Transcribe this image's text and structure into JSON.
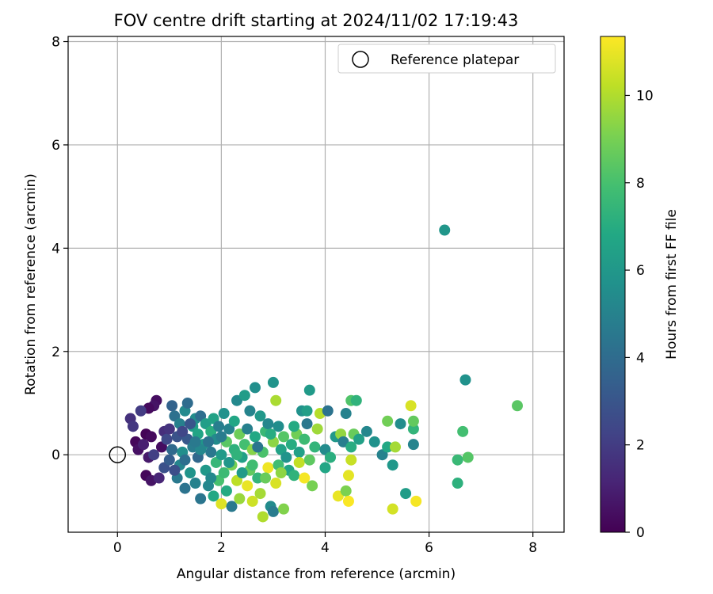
{
  "chart_data": {
    "type": "scatter",
    "title": "FOV centre drift starting at 2024/11/02 17:19:43",
    "xlabel": "Angular distance from reference (arcmin)",
    "ylabel": "Rotation from reference (arcmin)",
    "xlim": [
      -0.95,
      8.6
    ],
    "ylim": [
      -1.5,
      8.1
    ],
    "xticks": [
      0,
      2,
      4,
      6,
      8
    ],
    "yticks": [
      0,
      2,
      4,
      6,
      8
    ],
    "grid": true,
    "legend": {
      "placement": "top-right",
      "entries": [
        "Reference platepar"
      ]
    },
    "reference_point": {
      "x": 0,
      "y": 0,
      "label": "Reference platepar"
    },
    "colorbar": {
      "label": "Hours from first FF file",
      "range": [
        0,
        11.35
      ],
      "ticks": [
        0,
        2,
        4,
        6,
        8,
        10
      ],
      "colormap": "viridis"
    },
    "points": [
      {
        "x": 6.3,
        "y": 4.35,
        "c": 5.9
      },
      {
        "x": 0.75,
        "y": 1.05,
        "c": 0.4
      },
      {
        "x": 0.7,
        "y": 0.95,
        "c": 0.6
      },
      {
        "x": 0.6,
        "y": 0.9,
        "c": 0.3
      },
      {
        "x": 0.25,
        "y": 0.7,
        "c": 1.6
      },
      {
        "x": 0.45,
        "y": 0.85,
        "c": 2.0
      },
      {
        "x": 0.3,
        "y": 0.55,
        "c": 1.8
      },
      {
        "x": 0.35,
        "y": 0.25,
        "c": 0.2
      },
      {
        "x": 0.4,
        "y": 0.1,
        "c": 0.5
      },
      {
        "x": 0.5,
        "y": 0.2,
        "c": 1.0
      },
      {
        "x": 0.55,
        "y": 0.4,
        "c": 0.1
      },
      {
        "x": 0.65,
        "y": 0.35,
        "c": 0.3
      },
      {
        "x": 0.6,
        "y": -0.05,
        "c": 0.8
      },
      {
        "x": 0.55,
        "y": -0.4,
        "c": 0.2
      },
      {
        "x": 0.65,
        "y": -0.5,
        "c": 0.6
      },
      {
        "x": 0.8,
        "y": -0.45,
        "c": 1.2
      },
      {
        "x": 0.7,
        "y": 0.0,
        "c": 2.1
      },
      {
        "x": 0.85,
        "y": 0.15,
        "c": 0.4
      },
      {
        "x": 0.9,
        "y": 0.45,
        "c": 1.5
      },
      {
        "x": 0.95,
        "y": 0.3,
        "c": 2.5
      },
      {
        "x": 1.0,
        "y": 0.5,
        "c": 1.7
      },
      {
        "x": 0.9,
        "y": -0.25,
        "c": 2.8
      },
      {
        "x": 1.0,
        "y": -0.1,
        "c": 3.3
      },
      {
        "x": 1.05,
        "y": 0.1,
        "c": 3.9
      },
      {
        "x": 1.05,
        "y": 0.95,
        "c": 3.6
      },
      {
        "x": 1.1,
        "y": 0.75,
        "c": 4.2
      },
      {
        "x": 1.15,
        "y": 0.35,
        "c": 2.9
      },
      {
        "x": 1.15,
        "y": -0.45,
        "c": 4.6
      },
      {
        "x": 1.2,
        "y": -0.2,
        "c": 5.1
      },
      {
        "x": 1.2,
        "y": 0.6,
        "c": 4.9
      },
      {
        "x": 1.25,
        "y": 0.05,
        "c": 5.6
      },
      {
        "x": 1.3,
        "y": -0.65,
        "c": 4.3
      },
      {
        "x": 1.3,
        "y": 0.85,
        "c": 5.3
      },
      {
        "x": 1.35,
        "y": 0.3,
        "c": 3.1
      },
      {
        "x": 1.35,
        "y": 1.0,
        "c": 4.0
      },
      {
        "x": 1.4,
        "y": -0.35,
        "c": 5.8
      },
      {
        "x": 1.45,
        "y": 0.55,
        "c": 6.2
      },
      {
        "x": 1.45,
        "y": 0.15,
        "c": 4.7
      },
      {
        "x": 1.5,
        "y": -0.55,
        "c": 5.0
      },
      {
        "x": 1.5,
        "y": 0.7,
        "c": 5.5
      },
      {
        "x": 1.55,
        "y": -0.05,
        "c": 3.8
      },
      {
        "x": 1.55,
        "y": 0.4,
        "c": 6.6
      },
      {
        "x": 1.6,
        "y": -0.85,
        "c": 4.4
      },
      {
        "x": 1.6,
        "y": 0.75,
        "c": 4.1
      },
      {
        "x": 1.65,
        "y": 0.2,
        "c": 5.9
      },
      {
        "x": 1.7,
        "y": -0.3,
        "c": 6.0
      },
      {
        "x": 1.7,
        "y": 0.6,
        "c": 6.3
      },
      {
        "x": 1.75,
        "y": -0.6,
        "c": 5.2
      },
      {
        "x": 1.8,
        "y": 0.05,
        "c": 4.5
      },
      {
        "x": 1.8,
        "y": 0.45,
        "c": 7.1
      },
      {
        "x": 1.85,
        "y": -0.8,
        "c": 6.8
      },
      {
        "x": 1.85,
        "y": 0.7,
        "c": 6.5
      },
      {
        "x": 1.9,
        "y": -0.15,
        "c": 7.5
      },
      {
        "x": 1.9,
        "y": 0.3,
        "c": 5.4
      },
      {
        "x": 1.95,
        "y": -0.5,
        "c": 8.0
      },
      {
        "x": 1.95,
        "y": 0.55,
        "c": 4.8
      },
      {
        "x": 2.0,
        "y": 0.0,
        "c": 6.1
      },
      {
        "x": 2.0,
        "y": -0.95,
        "c": 10.8
      },
      {
        "x": 2.05,
        "y": 0.8,
        "c": 5.7
      },
      {
        "x": 2.05,
        "y": -0.35,
        "c": 7.7
      },
      {
        "x": 2.1,
        "y": 0.25,
        "c": 8.4
      },
      {
        "x": 2.1,
        "y": -0.7,
        "c": 6.9
      },
      {
        "x": 2.15,
        "y": 0.5,
        "c": 5.0
      },
      {
        "x": 2.2,
        "y": -0.2,
        "c": 9.0
      },
      {
        "x": 2.2,
        "y": -1.0,
        "c": 4.6
      },
      {
        "x": 2.25,
        "y": 0.1,
        "c": 7.2
      },
      {
        "x": 2.25,
        "y": 0.65,
        "c": 6.7
      },
      {
        "x": 2.3,
        "y": -0.5,
        "c": 10.2
      },
      {
        "x": 2.3,
        "y": 1.05,
        "c": 5.3
      },
      {
        "x": 2.35,
        "y": 0.4,
        "c": 8.8
      },
      {
        "x": 2.35,
        "y": -0.85,
        "c": 9.6
      },
      {
        "x": 2.4,
        "y": -0.05,
        "c": 6.4
      },
      {
        "x": 2.45,
        "y": 0.2,
        "c": 7.9
      },
      {
        "x": 2.45,
        "y": 1.15,
        "c": 6.2
      },
      {
        "x": 2.5,
        "y": -0.6,
        "c": 11.0
      },
      {
        "x": 2.5,
        "y": 0.5,
        "c": 4.9
      },
      {
        "x": 2.55,
        "y": -0.3,
        "c": 8.6
      },
      {
        "x": 2.55,
        "y": 0.85,
        "c": 5.1
      },
      {
        "x": 2.6,
        "y": 0.1,
        "c": 9.3
      },
      {
        "x": 2.6,
        "y": -0.9,
        "c": 10.5
      },
      {
        "x": 2.65,
        "y": 0.35,
        "c": 6.8
      },
      {
        "x": 2.65,
        "y": 1.3,
        "c": 5.6
      },
      {
        "x": 2.7,
        "y": -0.45,
        "c": 7.4
      },
      {
        "x": 2.75,
        "y": 0.75,
        "c": 6.0
      },
      {
        "x": 2.75,
        "y": -0.75,
        "c": 9.8
      },
      {
        "x": 2.8,
        "y": 0.05,
        "c": 8.1
      },
      {
        "x": 2.8,
        "y": -1.2,
        "c": 10.0
      },
      {
        "x": 2.85,
        "y": 0.45,
        "c": 7.6
      },
      {
        "x": 2.9,
        "y": -0.25,
        "c": 11.1
      },
      {
        "x": 2.9,
        "y": 0.6,
        "c": 5.2
      },
      {
        "x": 2.95,
        "y": -1.0,
        "c": 5.4
      },
      {
        "x": 3.0,
        "y": 0.25,
        "c": 9.4
      },
      {
        "x": 3.0,
        "y": -1.1,
        "c": 4.7
      },
      {
        "x": 3.0,
        "y": 1.4,
        "c": 5.8
      },
      {
        "x": 3.05,
        "y": -0.55,
        "c": 10.7
      },
      {
        "x": 3.05,
        "y": 1.05,
        "c": 9.9
      },
      {
        "x": 3.1,
        "y": 0.55,
        "c": 5.5
      },
      {
        "x": 3.1,
        "y": -0.2,
        "c": 7.8
      },
      {
        "x": 3.15,
        "y": 0.1,
        "c": 6.5
      },
      {
        "x": 3.2,
        "y": -1.05,
        "c": 9.2
      },
      {
        "x": 3.2,
        "y": 0.35,
        "c": 8.3
      },
      {
        "x": 3.3,
        "y": -0.3,
        "c": 6.6
      },
      {
        "x": 3.35,
        "y": 0.2,
        "c": 7.0
      },
      {
        "x": 3.4,
        "y": -0.4,
        "c": 7.3
      },
      {
        "x": 3.45,
        "y": 0.4,
        "c": 8.9
      },
      {
        "x": 3.5,
        "y": 0.05,
        "c": 6.4
      },
      {
        "x": 3.5,
        "y": -0.15,
        "c": 10.3
      },
      {
        "x": 3.55,
        "y": 0.85,
        "c": 5.7
      },
      {
        "x": 3.6,
        "y": -0.45,
        "c": 11.2
      },
      {
        "x": 3.6,
        "y": 0.3,
        "c": 7.7
      },
      {
        "x": 3.65,
        "y": 0.6,
        "c": 4.5
      },
      {
        "x": 3.65,
        "y": 0.85,
        "c": 6.3
      },
      {
        "x": 3.7,
        "y": 1.25,
        "c": 6.1
      },
      {
        "x": 3.7,
        "y": -0.1,
        "c": 8.5
      },
      {
        "x": 3.75,
        "y": -0.6,
        "c": 9.0
      },
      {
        "x": 3.8,
        "y": 0.15,
        "c": 7.4
      },
      {
        "x": 3.85,
        "y": 0.5,
        "c": 9.7
      },
      {
        "x": 3.9,
        "y": 0.8,
        "c": 10.1
      },
      {
        "x": 4.0,
        "y": 0.1,
        "c": 5.4
      },
      {
        "x": 4.0,
        "y": -0.25,
        "c": 6.7
      },
      {
        "x": 4.05,
        "y": 0.85,
        "c": 4.3
      },
      {
        "x": 4.1,
        "y": -0.05,
        "c": 7.1
      },
      {
        "x": 4.2,
        "y": 0.35,
        "c": 6.0
      },
      {
        "x": 4.25,
        "y": -0.8,
        "c": 11.0
      },
      {
        "x": 4.3,
        "y": 0.4,
        "c": 9.5
      },
      {
        "x": 4.35,
        "y": 0.25,
        "c": 4.8
      },
      {
        "x": 4.4,
        "y": 0.8,
        "c": 5.0
      },
      {
        "x": 4.4,
        "y": -0.7,
        "c": 9.1
      },
      {
        "x": 4.45,
        "y": -0.4,
        "c": 10.9
      },
      {
        "x": 4.45,
        "y": -0.9,
        "c": 11.3
      },
      {
        "x": 4.5,
        "y": 1.05,
        "c": 8.2
      },
      {
        "x": 4.5,
        "y": 0.15,
        "c": 7.0
      },
      {
        "x": 4.5,
        "y": -0.1,
        "c": 10.4
      },
      {
        "x": 4.55,
        "y": 0.4,
        "c": 8.7
      },
      {
        "x": 4.6,
        "y": 1.05,
        "c": 7.3
      },
      {
        "x": 4.65,
        "y": 0.3,
        "c": 6.4
      },
      {
        "x": 4.8,
        "y": 0.45,
        "c": 5.2
      },
      {
        "x": 4.95,
        "y": 0.25,
        "c": 5.7
      },
      {
        "x": 5.1,
        "y": 0.0,
        "c": 5.0
      },
      {
        "x": 5.2,
        "y": 0.65,
        "c": 8.9
      },
      {
        "x": 5.2,
        "y": 0.15,
        "c": 6.8
      },
      {
        "x": 5.3,
        "y": -1.05,
        "c": 10.6
      },
      {
        "x": 5.3,
        "y": -0.2,
        "c": 6.0
      },
      {
        "x": 5.35,
        "y": 0.15,
        "c": 9.8
      },
      {
        "x": 5.45,
        "y": 0.6,
        "c": 5.5
      },
      {
        "x": 5.55,
        "y": -0.75,
        "c": 6.2
      },
      {
        "x": 5.65,
        "y": 0.95,
        "c": 10.7
      },
      {
        "x": 5.7,
        "y": 0.2,
        "c": 5.1
      },
      {
        "x": 5.7,
        "y": 0.5,
        "c": 7.4
      },
      {
        "x": 5.7,
        "y": 0.65,
        "c": 8.6
      },
      {
        "x": 5.75,
        "y": -0.9,
        "c": 11.2
      },
      {
        "x": 6.55,
        "y": -0.1,
        "c": 7.6
      },
      {
        "x": 6.55,
        "y": -0.55,
        "c": 7.2
      },
      {
        "x": 6.65,
        "y": 0.45,
        "c": 7.9
      },
      {
        "x": 6.7,
        "y": 1.45,
        "c": 5.7
      },
      {
        "x": 6.75,
        "y": -0.05,
        "c": 8.3
      },
      {
        "x": 7.7,
        "y": 0.95,
        "c": 8.4
      },
      {
        "x": 1.4,
        "y": 0.6,
        "c": 3.0
      },
      {
        "x": 1.25,
        "y": 0.45,
        "c": 2.4
      },
      {
        "x": 1.1,
        "y": -0.3,
        "c": 2.7
      },
      {
        "x": 1.6,
        "y": 0.1,
        "c": 5.2
      },
      {
        "x": 1.75,
        "y": 0.25,
        "c": 4.3
      },
      {
        "x": 2.15,
        "y": -0.15,
        "c": 5.9
      },
      {
        "x": 2.4,
        "y": -0.35,
        "c": 6.1
      },
      {
        "x": 2.7,
        "y": 0.15,
        "c": 4.4
      },
      {
        "x": 2.95,
        "y": 0.4,
        "c": 7.0
      },
      {
        "x": 3.25,
        "y": -0.05,
        "c": 5.8
      },
      {
        "x": 3.4,
        "y": 0.55,
        "c": 6.9
      },
      {
        "x": 1.3,
        "y": -0.1,
        "c": 4.1
      },
      {
        "x": 1.5,
        "y": 0.25,
        "c": 4.6
      },
      {
        "x": 1.8,
        "y": -0.45,
        "c": 5.3
      },
      {
        "x": 2.0,
        "y": 0.35,
        "c": 4.7
      },
      {
        "x": 2.3,
        "y": 0.0,
        "c": 7.3
      },
      {
        "x": 2.6,
        "y": -0.2,
        "c": 7.8
      },
      {
        "x": 2.85,
        "y": -0.45,
        "c": 8.7
      },
      {
        "x": 3.15,
        "y": -0.35,
        "c": 9.4
      }
    ]
  }
}
